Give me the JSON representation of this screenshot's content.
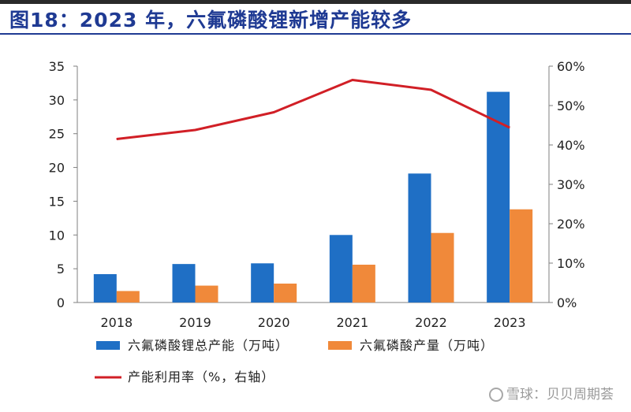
{
  "header": {
    "title": "图18：2023 年，六氟磷酸锂新增产能较多"
  },
  "watermark": {
    "text": "雪球：贝贝周期荟",
    "logo_icon": "snowball-icon"
  },
  "chart_data": {
    "type": "bar",
    "categories": [
      "2018",
      "2019",
      "2020",
      "2021",
      "2022",
      "2023"
    ],
    "series": [
      {
        "name": "六氟磷酸锂总产能（万吨）",
        "type": "bar",
        "axis": "left",
        "color": "#1f6fc5",
        "values": [
          4.2,
          5.7,
          5.8,
          10.0,
          19.1,
          31.2
        ]
      },
      {
        "name": "六氟磷酸产量（万吨）",
        "type": "bar",
        "axis": "left",
        "color": "#f0893a",
        "values": [
          1.7,
          2.5,
          2.8,
          5.6,
          10.3,
          13.8
        ]
      },
      {
        "name": "产能利用率（%，右轴）",
        "type": "line",
        "axis": "right",
        "color": "#d11f26",
        "values": [
          41.5,
          43.8,
          48.3,
          56.5,
          54.0,
          44.4
        ]
      }
    ],
    "y_left": {
      "min": 0,
      "max": 35,
      "ticks": [
        "0",
        "5",
        "10",
        "15",
        "20",
        "25",
        "30",
        "35"
      ]
    },
    "y_right": {
      "min": 0,
      "max": 60,
      "ticks": [
        "0%",
        "10%",
        "20%",
        "30%",
        "40%",
        "50%",
        "60%"
      ]
    },
    "grid": false,
    "legend": "bottom"
  }
}
